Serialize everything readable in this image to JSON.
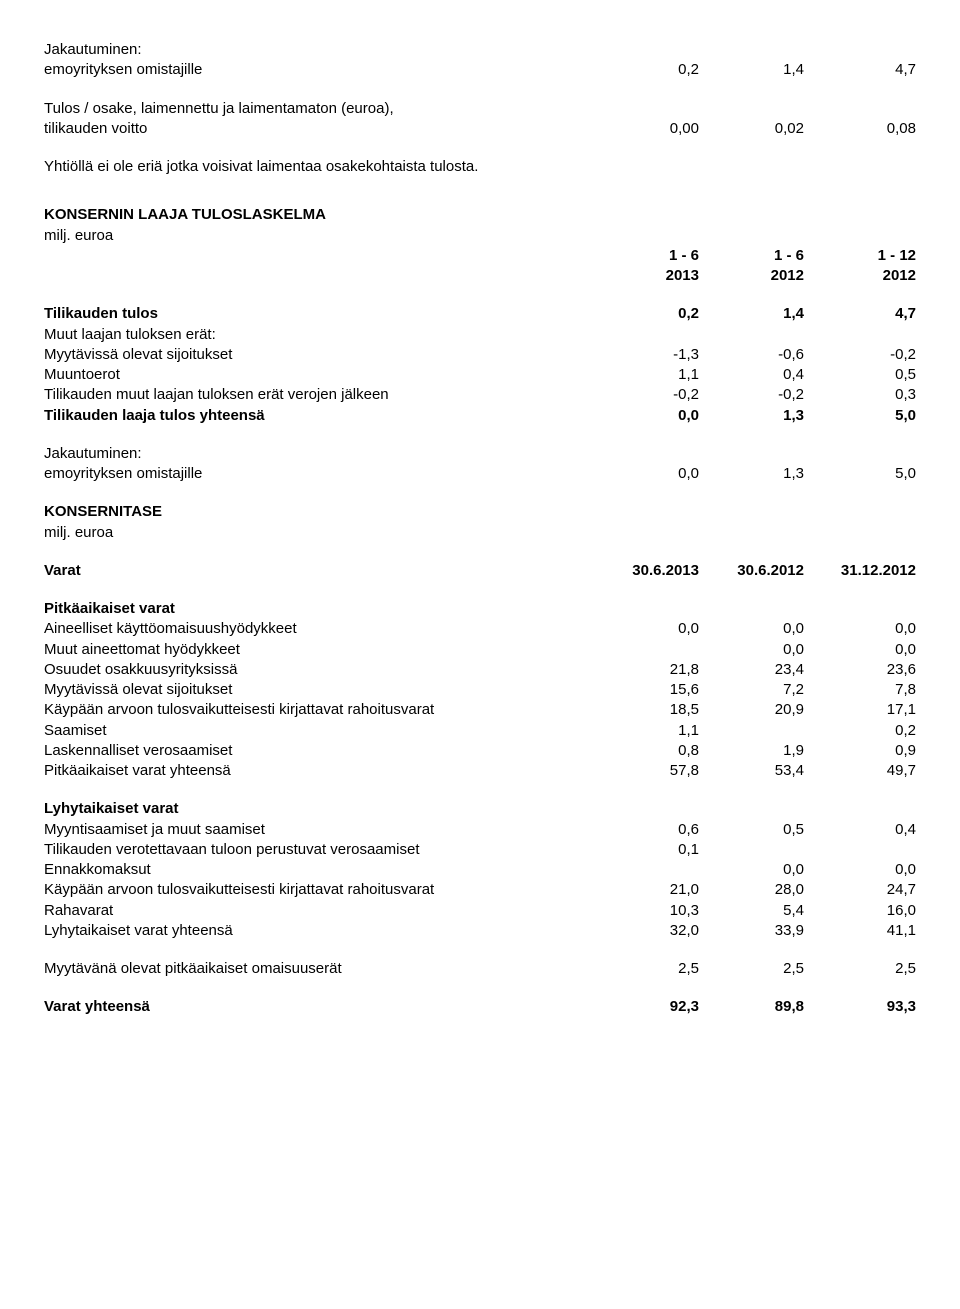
{
  "section1": {
    "jakautuminen_title": "Jakautuminen:",
    "emo_label": "emoyrityksen omistajille",
    "emo_vals": [
      "0,2",
      "1,4",
      "4,7"
    ],
    "eps_line1": "Tulos / osake, laimennettu ja laimentamaton (euroa),",
    "eps_line2": "tilikauden voitto",
    "eps_vals": [
      "0,00",
      "0,02",
      "0,08"
    ],
    "note": "Yhtiöllä ei ole eriä jotka voisivat laimentaa osakekohtaista tulosta."
  },
  "section2_title": "KONSERNIN LAAJA TULOSLASKELMA",
  "milj": "milj. euroa",
  "periods": {
    "c1": "1 - 6",
    "c2": "1 - 6",
    "c3": "1 - 12"
  },
  "years": {
    "c1": "2013",
    "c2": "2012",
    "c3": "2012"
  },
  "cis": {
    "tilikauden_tulos": {
      "label": "Tilikauden tulos",
      "v": [
        "0,2",
        "1,4",
        "4,7"
      ]
    },
    "muut_laajan_header": "Muut laajan tuloksen erät:",
    "myyt": {
      "label": "Myytävissä olevat sijoitukset",
      "v": [
        "-1,3",
        "-0,6",
        "-0,2"
      ]
    },
    "muunto": {
      "label": "Muuntoerot",
      "v": [
        "1,1",
        "0,4",
        "0,5"
      ]
    },
    "verot": {
      "label": "Tilikauden muut laajan tuloksen erät verojen jälkeen",
      "v": [
        "-0,2",
        "-0,2",
        "0,3"
      ]
    },
    "laaja_yht": {
      "label": "Tilikauden laaja tulos yhteensä",
      "v": [
        "0,0",
        "1,3",
        "5,0"
      ]
    },
    "jakautuminen": "Jakautuminen:",
    "emo": {
      "label": "emoyrityksen omistajille",
      "v": [
        "0,0",
        "1,3",
        "5,0"
      ]
    }
  },
  "tase_title": "KONSERNITASE",
  "varat_label": "Varat",
  "tase_dates": {
    "c1": "30.6.2013",
    "c2": "30.6.2012",
    "c3": "31.12.2012"
  },
  "pitkat": {
    "header": "Pitkäaikaiset varat",
    "aine": {
      "label": "Aineelliset käyttöomaisuushyödykkeet",
      "v": [
        "0,0",
        "0,0",
        "0,0"
      ]
    },
    "muut": {
      "label": "Muut aineettomat hyödykkeet",
      "v": [
        "",
        "0,0",
        "0,0"
      ]
    },
    "osuu": {
      "label": "Osuudet osakkuusyrityksissä",
      "v": [
        "21,8",
        "23,4",
        "23,6"
      ]
    },
    "myyt": {
      "label": "Myytävissä olevat sijoitukset",
      "v": [
        "15,6",
        "7,2",
        "7,8"
      ]
    },
    "kayp": {
      "label": "Käypään arvoon tulosvaikutteisesti kirjattavat rahoitusvarat",
      "v": [
        "18,5",
        "20,9",
        "17,1"
      ]
    },
    "saam": {
      "label": "Saamiset",
      "v": [
        "1,1",
        "",
        "0,2"
      ]
    },
    "lask": {
      "label": "Laskennalliset verosaamiset",
      "v": [
        "0,8",
        "1,9",
        "0,9"
      ]
    },
    "yht": {
      "label": "Pitkäaikaiset varat yhteensä",
      "v": [
        "57,8",
        "53,4",
        "49,7"
      ]
    }
  },
  "lyhyet": {
    "header": "Lyhytaikaiset varat",
    "myynti": {
      "label": "Myyntisaamiset ja muut saamiset",
      "v": [
        "0,6",
        "0,5",
        "0,4"
      ]
    },
    "vero": {
      "label": "Tilikauden verotettavaan tuloon perustuvat verosaamiset",
      "v": [
        "0,1",
        "",
        ""
      ]
    },
    "enna": {
      "label": "Ennakkomaksut",
      "v": [
        "",
        "0,0",
        "0,0"
      ]
    },
    "kayp": {
      "label": "Käypään arvoon tulosvaikutteisesti kirjattavat rahoitusvarat",
      "v": [
        "21,0",
        "28,0",
        "24,7"
      ]
    },
    "raha": {
      "label": "Rahavarat",
      "v": [
        "10,3",
        "5,4",
        "16,0"
      ]
    },
    "yht": {
      "label": "Lyhytaikaiset varat yhteensä",
      "v": [
        "32,0",
        "33,9",
        "41,1"
      ]
    }
  },
  "myytavana": {
    "label": "Myytävänä olevat pitkäaikaiset omaisuuserät",
    "v": [
      "2,5",
      "2,5",
      "2,5"
    ]
  },
  "varat_yht": {
    "label": "Varat yhteensä",
    "v": [
      "92,3",
      "89,8",
      "93,3"
    ]
  }
}
